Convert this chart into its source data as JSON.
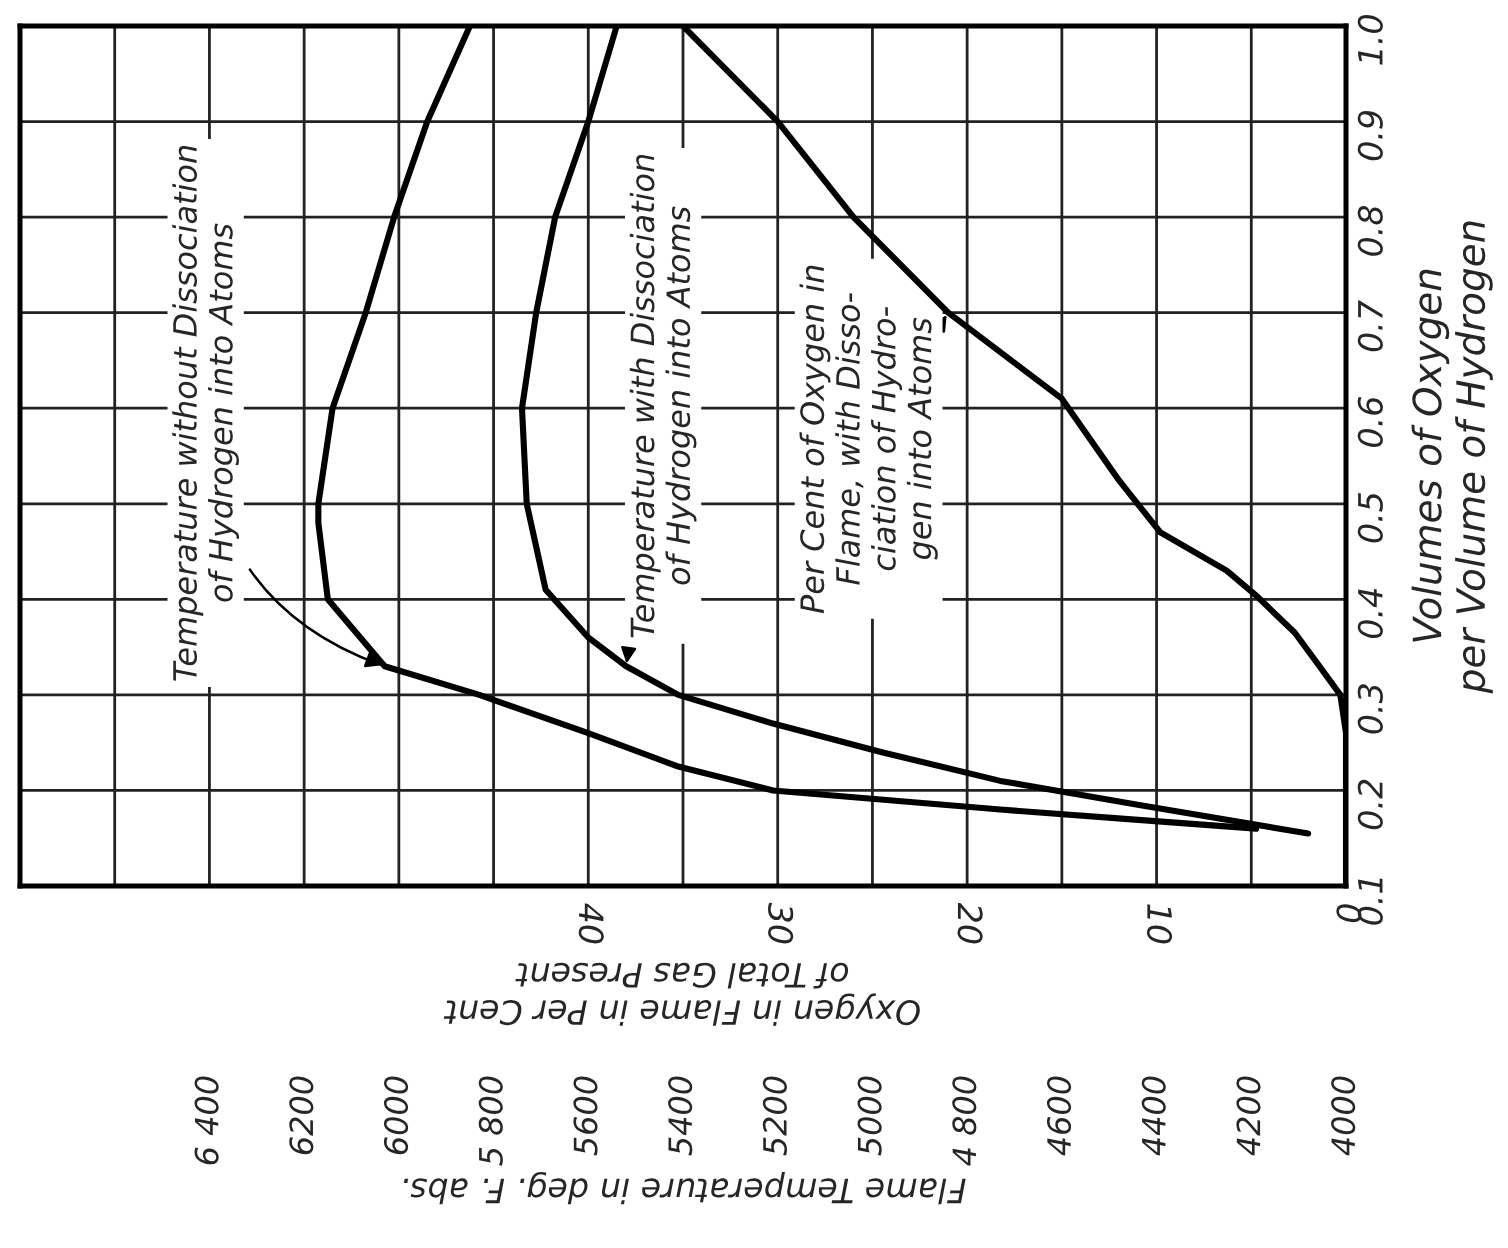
{
  "chart_data": {
    "type": "line",
    "xlabel": "Flame Temperature in deg. F. abs.",
    "x2label": "Oxygen in Flame in Per Cent\nof Total Gas Present",
    "ylabel": "Volumes of Oxygen\nper Volume of Hydrogen",
    "xlim": [
      6800,
      4000
    ],
    "xticks": [
      {
        "value": 6600,
        "label": null
      },
      {
        "value": 6400,
        "label": "6 400"
      },
      6200,
      6000,
      {
        "value": 5800,
        "label": "5 800"
      },
      5600,
      5400,
      5200,
      5000,
      {
        "value": 4800,
        "label": "4 800"
      },
      4600,
      4400,
      4200,
      4000
    ],
    "x2lim": [
      70,
      0
    ],
    "x2ticks": [
      40,
      30,
      20,
      10,
      0
    ],
    "ylim": [
      0.1,
      1.0
    ],
    "yticks": [
      0.1,
      0.2,
      0.3,
      0.4,
      0.5,
      0.6,
      0.7,
      0.8,
      0.9,
      {
        "value": 1.0,
        "label": "1.0"
      }
    ],
    "grid": true,
    "series": [
      {
        "color": "#000000",
        "x": [
          5850,
          5940,
          6010,
          6070,
          6140,
          6170,
          6170,
          6150,
          6030,
          5830,
          5600,
          5410,
          5210,
          4730,
          4460,
          4190
        ],
        "values": [
          1.0,
          0.9,
          0.8,
          0.7,
          0.6,
          0.5,
          0.48,
          0.4,
          0.33,
          0.3,
          0.26,
          0.225,
          0.2,
          0.18,
          0.17,
          0.16
        ]
      },
      {
        "color": "#000000",
        "x": [
          5540,
          5600,
          5670,
          5710,
          5740,
          5730,
          5690,
          5600,
          5520,
          5410,
          5210,
          4980,
          4730,
          4440,
          4080
        ],
        "values": [
          1.0,
          0.9,
          0.8,
          0.7,
          0.6,
          0.5,
          0.41,
          0.36,
          0.33,
          0.3,
          0.27,
          0.24,
          0.21,
          0.185,
          0.155
        ]
      },
      {
        "color": "#000000",
        "axis": "x2",
        "x": [
          35,
          30,
          26,
          21,
          15,
          12,
          11,
          9.8,
          6.3,
          4.8,
          2.7,
          1.4,
          0.3,
          0,
          0
        ],
        "values": [
          1.0,
          0.9,
          0.8,
          0.7,
          0.61,
          0.525,
          0.5,
          0.47,
          0.43,
          0.405,
          0.365,
          0.33,
          0.3,
          0.26,
          0.1
        ]
      }
    ],
    "annotations": [
      {
        "text": "Temperature without Dissociation\nof Hydrogen into Atoms",
        "x": 6030,
        "y": 0.33
      },
      {
        "text": "Temperature with Dissociation\nof Hydrogen into Atoms",
        "x": 5520,
        "y": 0.33
      },
      "Per Cent of Oxygen in\nFlame, with Disso-\nciation of Hydro-\ngen into Atoms"
    ]
  }
}
